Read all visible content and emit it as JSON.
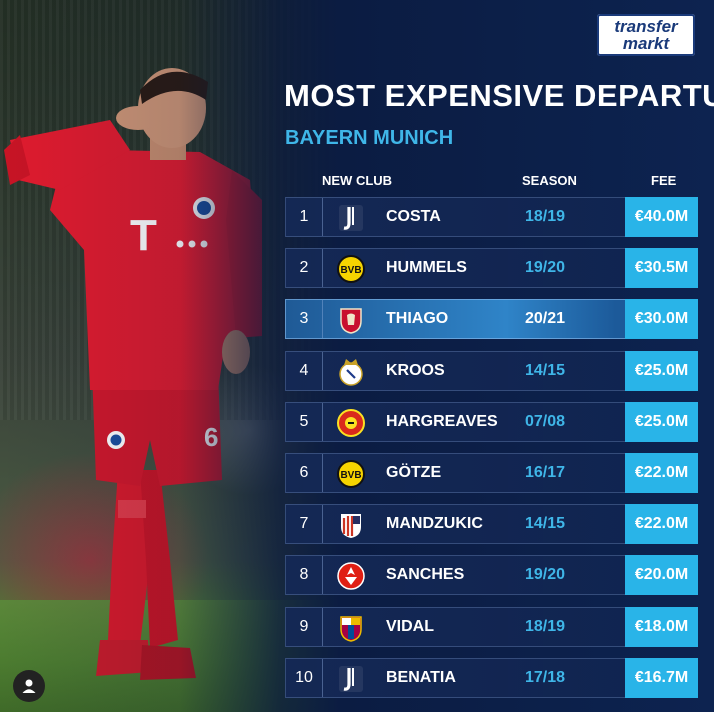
{
  "logo": {
    "line1": "transfer",
    "line2": "markt"
  },
  "title": "MOST EXPENSIVE DEPARTURES",
  "subtitle": "BAYERN MUNICH",
  "columns": {
    "club": "NEW CLUB",
    "season": "SEASON",
    "fee": "FEE"
  },
  "rows": [
    {
      "rank": "1",
      "crest": "juventus-crest",
      "name": "COSTA",
      "season": "18/19",
      "fee": "€40.0M"
    },
    {
      "rank": "2",
      "crest": "dortmund-crest",
      "name": "HUMMELS",
      "season": "19/20",
      "fee": "€30.5M"
    },
    {
      "rank": "3",
      "crest": "liverpool-crest",
      "name": "THIAGO",
      "season": "20/21",
      "fee": "€30.0M",
      "highlight": true
    },
    {
      "rank": "4",
      "crest": "real-madrid-crest",
      "name": "KROOS",
      "season": "14/15",
      "fee": "€25.0M"
    },
    {
      "rank": "5",
      "crest": "manchester-united-crest",
      "name": "HARGREAVES",
      "season": "07/08",
      "fee": "€25.0M"
    },
    {
      "rank": "6",
      "crest": "dortmund-crest",
      "name": "GÖTZE",
      "season": "16/17",
      "fee": "€22.0M"
    },
    {
      "rank": "7",
      "crest": "atletico-madrid-crest",
      "name": "MANDZUKIC",
      "season": "14/15",
      "fee": "€22.0M"
    },
    {
      "rank": "8",
      "crest": "lille-crest",
      "name": "SANCHES",
      "season": "19/20",
      "fee": "€20.0M"
    },
    {
      "rank": "9",
      "crest": "barcelona-crest",
      "name": "VIDAL",
      "season": "18/19",
      "fee": "€18.0M"
    },
    {
      "rank": "10",
      "crest": "juventus-crest",
      "name": "BENATIA",
      "season": "17/18",
      "fee": "€16.7M"
    }
  ],
  "colors": {
    "accent": "#29b4e8",
    "season_text": "#3fb6e8",
    "highlight_row": "#2f84c8"
  }
}
